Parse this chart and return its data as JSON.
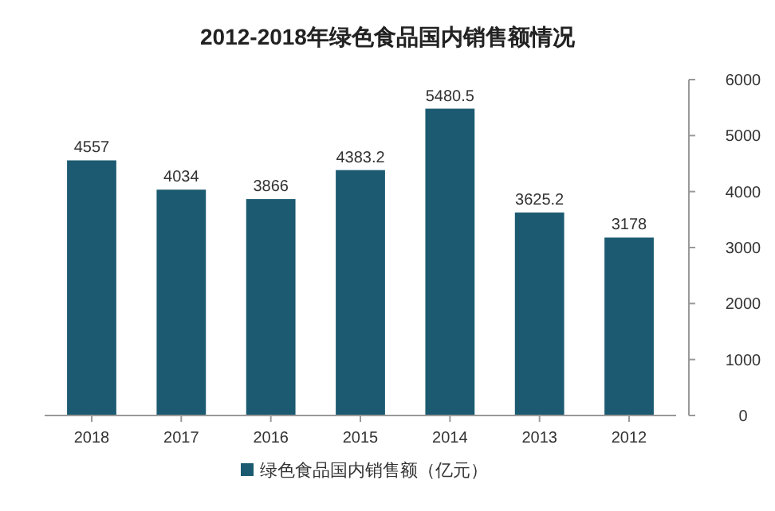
{
  "chart_data": {
    "type": "bar",
    "title": "2012-2018年绿色食品国内销售额情况",
    "categories": [
      "2018",
      "2017",
      "2016",
      "2015",
      "2014",
      "2013",
      "2012"
    ],
    "series": [
      {
        "name": "绿色食品国内销售额（亿元）",
        "color": "#1b5a70",
        "values": [
          4557,
          4034,
          3866,
          4383.2,
          5480.5,
          3625.2,
          3178
        ]
      }
    ],
    "ylim": [
      0,
      6000
    ],
    "yticks": [
      0,
      1000,
      2000,
      3000,
      4000,
      5000,
      6000
    ],
    "data_labels": true,
    "legend": "bottom",
    "grid": false
  }
}
